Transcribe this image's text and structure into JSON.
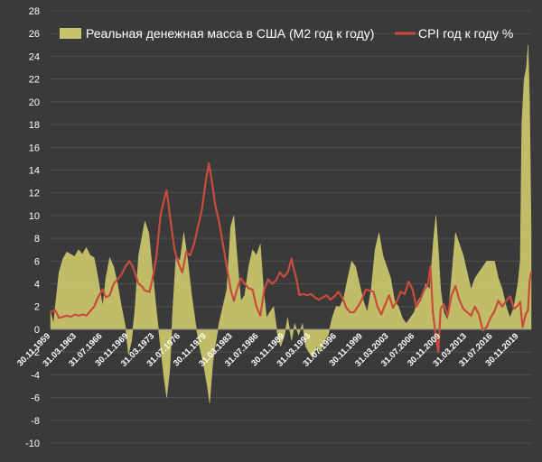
{
  "chart_data": {
    "type": "area+line",
    "title": "",
    "xlabel": "",
    "ylabel": "",
    "ylim": [
      -10,
      28
    ],
    "ytick_step": 2,
    "x_start": 1959.92,
    "x_end": 2021.5,
    "xticks": [
      {
        "label": "30.11.1959",
        "year": 1959.92
      },
      {
        "label": "31.03.1963",
        "year": 1963.25
      },
      {
        "label": "31.07.1966",
        "year": 1966.58
      },
      {
        "label": "30.11.1969",
        "year": 1969.92
      },
      {
        "label": "31.03.1973",
        "year": 1973.25
      },
      {
        "label": "31.07.1976",
        "year": 1976.58
      },
      {
        "label": "30.11.1979",
        "year": 1979.92
      },
      {
        "label": "31.03.1983",
        "year": 1983.25
      },
      {
        "label": "31.07.1986",
        "year": 1986.58
      },
      {
        "label": "30.11.1989",
        "year": 1989.92
      },
      {
        "label": "31.03.1993",
        "year": 1993.25
      },
      {
        "label": "31.07.1996",
        "year": 1996.58
      },
      {
        "label": "30.11.1999",
        "year": 1999.92
      },
      {
        "label": "31.03.2003",
        "year": 2003.25
      },
      {
        "label": "31.07.2006",
        "year": 2006.58
      },
      {
        "label": "30.11.2009",
        "year": 2009.92
      },
      {
        "label": "31.03.2013",
        "year": 2013.25
      },
      {
        "label": "31.07.2016",
        "year": 2016.58
      },
      {
        "label": "30.11.2019",
        "year": 2019.92
      }
    ],
    "legend_position": "top",
    "series": [
      {
        "name": "Реальная денежная масса в США (М2 год к году)",
        "kind": "area",
        "color": "#c8c36a",
        "points": [
          [
            1959.92,
            1.5
          ],
          [
            1960.3,
            0.5
          ],
          [
            1960.6,
            2.5
          ],
          [
            1961.0,
            5.0
          ],
          [
            1961.5,
            6.2
          ],
          [
            1962.0,
            6.8
          ],
          [
            1962.5,
            6.6
          ],
          [
            1963.0,
            6.4
          ],
          [
            1963.5,
            7.0
          ],
          [
            1964.0,
            6.6
          ],
          [
            1964.5,
            7.2
          ],
          [
            1965.0,
            6.5
          ],
          [
            1965.5,
            6.3
          ],
          [
            1966.0,
            4.5
          ],
          [
            1966.6,
            2.0
          ],
          [
            1967.0,
            4.5
          ],
          [
            1967.5,
            6.3
          ],
          [
            1968.0,
            5.5
          ],
          [
            1968.5,
            4.0
          ],
          [
            1969.0,
            2.0
          ],
          [
            1969.5,
            0.3
          ],
          [
            1969.9,
            -2.2
          ],
          [
            1970.3,
            -1.0
          ],
          [
            1970.7,
            1.5
          ],
          [
            1971.2,
            6.5
          ],
          [
            1971.6,
            8.0
          ],
          [
            1972.0,
            9.5
          ],
          [
            1972.5,
            8.5
          ],
          [
            1973.0,
            5.0
          ],
          [
            1973.5,
            1.5
          ],
          [
            1974.0,
            -1.5
          ],
          [
            1974.5,
            -4.5
          ],
          [
            1974.8,
            -6.0
          ],
          [
            1975.2,
            -3.5
          ],
          [
            1975.6,
            2.0
          ],
          [
            1976.0,
            6.5
          ],
          [
            1976.5,
            6.0
          ],
          [
            1977.0,
            8.5
          ],
          [
            1977.5,
            6.0
          ],
          [
            1978.0,
            3.0
          ],
          [
            1978.5,
            0.5
          ],
          [
            1979.0,
            -1.5
          ],
          [
            1979.5,
            -3.0
          ],
          [
            1980.0,
            -5.0
          ],
          [
            1980.3,
            -6.5
          ],
          [
            1980.7,
            -3.0
          ],
          [
            1981.0,
            -1.5
          ],
          [
            1981.5,
            0.5
          ],
          [
            1982.0,
            2.0
          ],
          [
            1982.5,
            3.5
          ],
          [
            1983.0,
            9.0
          ],
          [
            1983.4,
            10.0
          ],
          [
            1983.8,
            6.5
          ],
          [
            1984.3,
            2.5
          ],
          [
            1984.8,
            3.0
          ],
          [
            1985.3,
            5.5
          ],
          [
            1985.8,
            7.0
          ],
          [
            1986.3,
            6.5
          ],
          [
            1986.8,
            7.5
          ],
          [
            1987.2,
            3.5
          ],
          [
            1987.6,
            1.0
          ],
          [
            1988.0,
            1.5
          ],
          [
            1988.5,
            2.0
          ],
          [
            1989.0,
            -0.5
          ],
          [
            1989.4,
            -1.5
          ],
          [
            1989.9,
            -0.5
          ],
          [
            1990.3,
            1.0
          ],
          [
            1990.8,
            -1.0
          ],
          [
            1991.2,
            0.5
          ],
          [
            1991.7,
            -0.5
          ],
          [
            1992.2,
            0.5
          ],
          [
            1992.6,
            -1.5
          ],
          [
            1993.0,
            -2.0
          ],
          [
            1993.5,
            -2.5
          ],
          [
            1994.0,
            -1.5
          ],
          [
            1994.5,
            -2.0
          ],
          [
            1995.0,
            -1.0
          ],
          [
            1995.5,
            -0.5
          ],
          [
            1996.0,
            1.0
          ],
          [
            1996.5,
            2.0
          ],
          [
            1997.0,
            2.0
          ],
          [
            1997.5,
            2.8
          ],
          [
            1998.0,
            4.5
          ],
          [
            1998.5,
            6.0
          ],
          [
            1999.0,
            5.5
          ],
          [
            1999.5,
            4.0
          ],
          [
            2000.0,
            2.5
          ],
          [
            2000.5,
            1.5
          ],
          [
            2001.0,
            3.5
          ],
          [
            2001.5,
            7.0
          ],
          [
            2002.0,
            8.5
          ],
          [
            2002.5,
            6.5
          ],
          [
            2003.0,
            5.5
          ],
          [
            2003.5,
            4.5
          ],
          [
            2004.0,
            2.5
          ],
          [
            2004.5,
            2.0
          ],
          [
            2005.0,
            1.0
          ],
          [
            2005.5,
            0.5
          ],
          [
            2006.0,
            1.0
          ],
          [
            2006.5,
            1.5
          ],
          [
            2007.0,
            2.5
          ],
          [
            2007.5,
            3.0
          ],
          [
            2008.0,
            4.0
          ],
          [
            2008.5,
            3.5
          ],
          [
            2009.0,
            8.0
          ],
          [
            2009.3,
            10.0
          ],
          [
            2009.6,
            7.0
          ],
          [
            2009.9,
            3.5
          ],
          [
            2010.3,
            1.5
          ],
          [
            2010.8,
            0.8
          ],
          [
            2011.3,
            4.5
          ],
          [
            2011.8,
            8.5
          ],
          [
            2012.3,
            7.5
          ],
          [
            2012.8,
            6.5
          ],
          [
            2013.3,
            5.0
          ],
          [
            2013.8,
            3.5
          ],
          [
            2014.3,
            4.5
          ],
          [
            2014.8,
            5.0
          ],
          [
            2015.3,
            5.5
          ],
          [
            2015.8,
            6.0
          ],
          [
            2016.3,
            6.0
          ],
          [
            2016.8,
            6.0
          ],
          [
            2017.3,
            4.5
          ],
          [
            2017.8,
            3.5
          ],
          [
            2018.3,
            2.0
          ],
          [
            2018.8,
            1.0
          ],
          [
            2019.3,
            2.0
          ],
          [
            2019.8,
            4.0
          ],
          [
            2020.1,
            6.0
          ],
          [
            2020.3,
            18.0
          ],
          [
            2020.6,
            22.0
          ],
          [
            2020.9,
            23.0
          ],
          [
            2021.1,
            25.0
          ],
          [
            2021.3,
            20.0
          ],
          [
            2021.5,
            8.5
          ]
        ]
      },
      {
        "name": "CPI год к году %",
        "kind": "line",
        "color": "#c84b3c",
        "points": [
          [
            1959.92,
            1.5
          ],
          [
            1960.5,
            1.7
          ],
          [
            1961.0,
            1.0
          ],
          [
            1961.5,
            1.1
          ],
          [
            1962.0,
            1.2
          ],
          [
            1962.5,
            1.1
          ],
          [
            1963.0,
            1.3
          ],
          [
            1963.5,
            1.2
          ],
          [
            1964.0,
            1.3
          ],
          [
            1964.5,
            1.2
          ],
          [
            1965.0,
            1.6
          ],
          [
            1965.5,
            2.0
          ],
          [
            1966.0,
            2.8
          ],
          [
            1966.6,
            3.5
          ],
          [
            1967.0,
            2.8
          ],
          [
            1967.5,
            3.0
          ],
          [
            1968.0,
            4.0
          ],
          [
            1968.5,
            4.4
          ],
          [
            1969.0,
            4.8
          ],
          [
            1969.5,
            5.5
          ],
          [
            1970.0,
            6.0
          ],
          [
            1970.4,
            5.6
          ],
          [
            1970.8,
            4.8
          ],
          [
            1971.2,
            4.0
          ],
          [
            1971.6,
            3.8
          ],
          [
            1972.0,
            3.4
          ],
          [
            1972.6,
            3.3
          ],
          [
            1973.0,
            4.5
          ],
          [
            1973.5,
            6.5
          ],
          [
            1974.0,
            10.0
          ],
          [
            1974.5,
            11.5
          ],
          [
            1974.8,
            12.2
          ],
          [
            1975.3,
            9.5
          ],
          [
            1975.8,
            7.0
          ],
          [
            1976.3,
            5.8
          ],
          [
            1976.8,
            5.0
          ],
          [
            1977.3,
            6.8
          ],
          [
            1977.8,
            6.5
          ],
          [
            1978.3,
            7.5
          ],
          [
            1978.8,
            9.0
          ],
          [
            1979.3,
            10.5
          ],
          [
            1979.8,
            13.0
          ],
          [
            1980.2,
            14.6
          ],
          [
            1980.6,
            13.0
          ],
          [
            1981.0,
            11.0
          ],
          [
            1981.5,
            9.5
          ],
          [
            1982.0,
            7.5
          ],
          [
            1982.5,
            5.5
          ],
          [
            1983.0,
            3.5
          ],
          [
            1983.4,
            2.5
          ],
          [
            1983.8,
            3.5
          ],
          [
            1984.3,
            4.5
          ],
          [
            1984.8,
            4.0
          ],
          [
            1985.3,
            3.6
          ],
          [
            1985.8,
            3.5
          ],
          [
            1986.3,
            2.0
          ],
          [
            1986.8,
            1.2
          ],
          [
            1987.3,
            3.5
          ],
          [
            1987.8,
            4.4
          ],
          [
            1988.3,
            4.0
          ],
          [
            1988.8,
            4.3
          ],
          [
            1989.3,
            5.0
          ],
          [
            1989.8,
            4.6
          ],
          [
            1990.3,
            5.0
          ],
          [
            1990.8,
            6.2
          ],
          [
            1991.0,
            5.5
          ],
          [
            1991.4,
            4.5
          ],
          [
            1991.8,
            3.0
          ],
          [
            1992.3,
            3.1
          ],
          [
            1992.8,
            3.0
          ],
          [
            1993.3,
            3.1
          ],
          [
            1993.8,
            2.8
          ],
          [
            1994.3,
            2.6
          ],
          [
            1994.8,
            2.8
          ],
          [
            1995.3,
            3.0
          ],
          [
            1995.8,
            2.6
          ],
          [
            1996.3,
            2.9
          ],
          [
            1996.8,
            3.3
          ],
          [
            1997.3,
            2.8
          ],
          [
            1997.8,
            1.9
          ],
          [
            1998.3,
            1.5
          ],
          [
            1998.8,
            1.5
          ],
          [
            1999.3,
            2.0
          ],
          [
            1999.8,
            2.6
          ],
          [
            2000.3,
            3.5
          ],
          [
            2000.8,
            3.4
          ],
          [
            2001.3,
            3.3
          ],
          [
            2001.8,
            2.0
          ],
          [
            2002.3,
            1.3
          ],
          [
            2002.8,
            2.2
          ],
          [
            2003.3,
            3.0
          ],
          [
            2003.8,
            1.9
          ],
          [
            2004.3,
            2.5
          ],
          [
            2004.8,
            3.3
          ],
          [
            2005.3,
            3.1
          ],
          [
            2005.8,
            4.2
          ],
          [
            2006.3,
            3.5
          ],
          [
            2006.8,
            2.0
          ],
          [
            2007.3,
            2.6
          ],
          [
            2007.8,
            3.5
          ],
          [
            2008.3,
            4.0
          ],
          [
            2008.6,
            5.5
          ],
          [
            2008.9,
            1.5
          ],
          [
            2009.3,
            -0.7
          ],
          [
            2009.6,
            -2.0
          ],
          [
            2009.9,
            1.8
          ],
          [
            2010.3,
            2.2
          ],
          [
            2010.8,
            1.2
          ],
          [
            2011.3,
            3.0
          ],
          [
            2011.8,
            3.8
          ],
          [
            2012.3,
            2.6
          ],
          [
            2012.8,
            1.8
          ],
          [
            2013.3,
            1.5
          ],
          [
            2013.8,
            1.2
          ],
          [
            2014.3,
            2.0
          ],
          [
            2014.8,
            1.3
          ],
          [
            2015.3,
            -0.1
          ],
          [
            2015.8,
            0.2
          ],
          [
            2016.3,
            1.0
          ],
          [
            2016.8,
            1.6
          ],
          [
            2017.3,
            2.5
          ],
          [
            2017.8,
            2.0
          ],
          [
            2018.3,
            2.5
          ],
          [
            2018.8,
            2.9
          ],
          [
            2019.3,
            1.8
          ],
          [
            2019.8,
            2.1
          ],
          [
            2020.1,
            2.4
          ],
          [
            2020.4,
            0.2
          ],
          [
            2020.8,
            1.3
          ],
          [
            2021.1,
            1.7
          ],
          [
            2021.3,
            4.2
          ],
          [
            2021.5,
            5.0
          ]
        ]
      }
    ]
  }
}
